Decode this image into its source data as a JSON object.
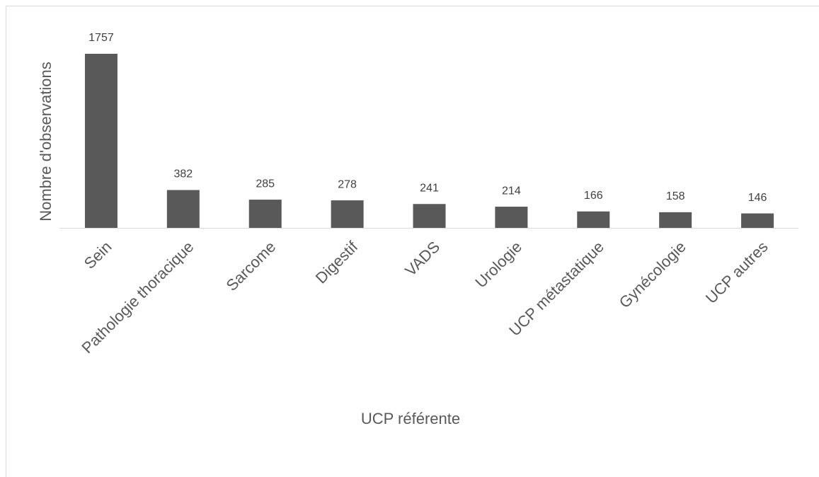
{
  "chart_data": {
    "type": "bar",
    "x_label": "UCP référente",
    "y_label": "Nombre d'observations",
    "categories": [
      "Sein",
      "Pathologie thoracique",
      "Sarcome",
      "Digestif",
      "VADS",
      "Urologie",
      "UCP métastatique",
      "Gynécologie",
      "UCP autres"
    ],
    "values": [
      1757,
      382,
      285,
      278,
      241,
      214,
      166,
      158,
      146
    ],
    "color": "#595959"
  }
}
